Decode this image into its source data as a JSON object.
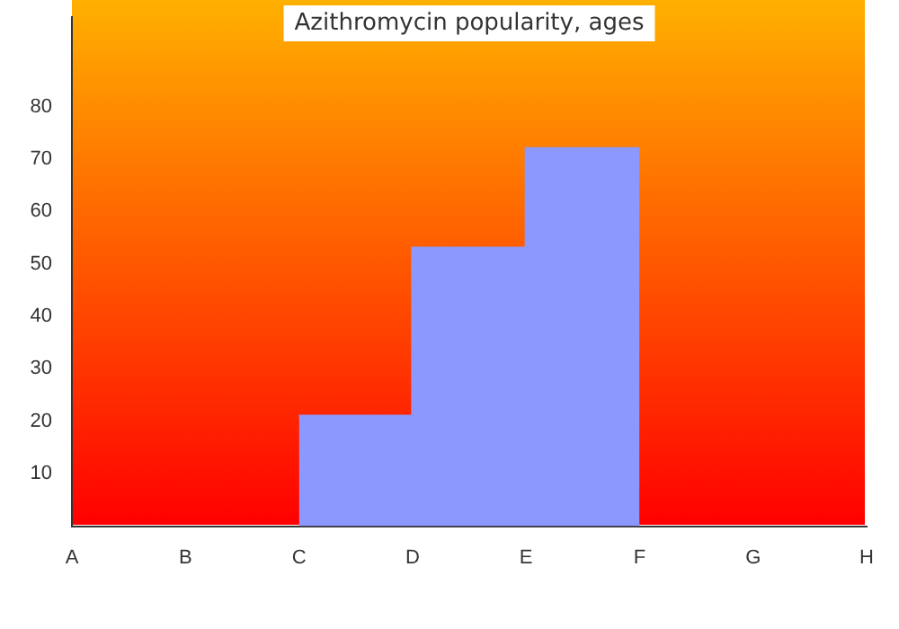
{
  "chart_data": {
    "type": "area",
    "title": "Azithromycin popularity, ages",
    "categories": [
      "A",
      "B",
      "C",
      "D",
      "E",
      "F",
      "G",
      "H"
    ],
    "series": [
      {
        "color": "#8c98fc",
        "x": [
          "C",
          "D",
          "D",
          "E",
          "E",
          "F"
        ],
        "values": [
          21,
          21,
          53,
          53,
          72,
          72
        ]
      }
    ],
    "ylim": [
      0,
      97
    ],
    "yticks": [
      10,
      20,
      30,
      40,
      50,
      60,
      70,
      80
    ],
    "legend": false
  }
}
